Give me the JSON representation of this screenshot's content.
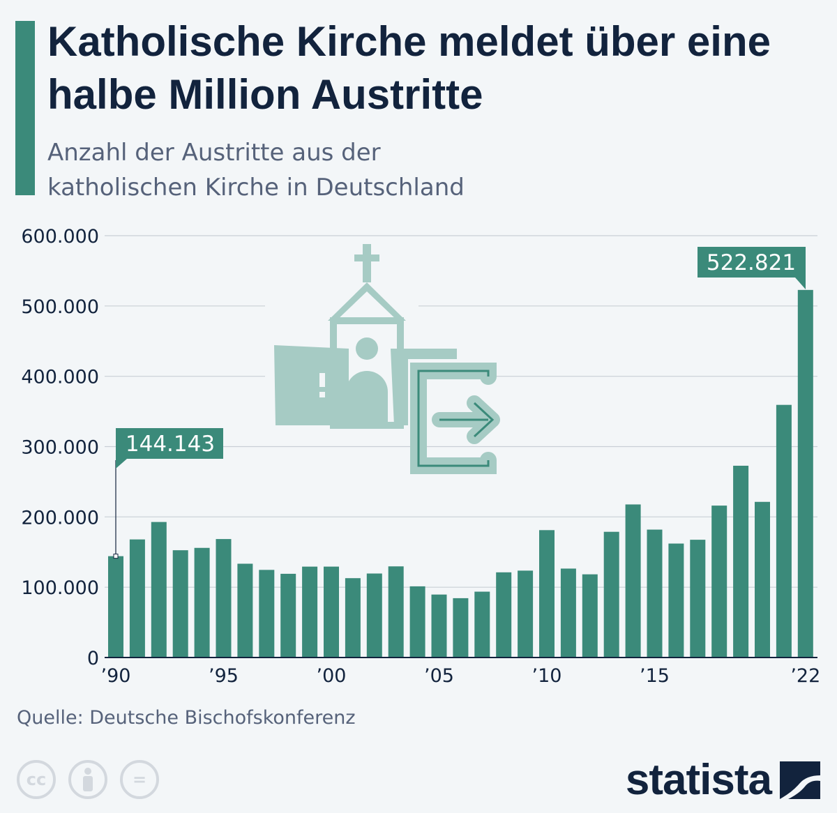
{
  "title": "Katholische Kirche meldet über eine halbe Million Austritte",
  "subtitle_line1": "Anzahl der Austritte aus der",
  "subtitle_line2": "katholischen Kirche in Deutschland",
  "source": "Quelle: Deutsche Bischofskonferenz",
  "brand": "statista",
  "icons": [
    "church-icon",
    "exit-icon",
    "cc-icon",
    "by-icon",
    "nd-icon"
  ],
  "colors": {
    "bar": "#3b8a7a",
    "title": "#12233d",
    "icon": "#a6cbc4"
  },
  "chart_data": {
    "type": "bar",
    "title": "",
    "xlabel": "",
    "ylabel": "",
    "ylim": [
      0,
      600000
    ],
    "grid": true,
    "yticks": [
      "0",
      "100.000",
      "200.000",
      "300.000",
      "400.000",
      "500.000",
      "600.000"
    ],
    "xticks": [
      {
        "year": 1990,
        "label": "’90"
      },
      {
        "year": 1995,
        "label": "’95"
      },
      {
        "year": 2000,
        "label": "’00"
      },
      {
        "year": 2005,
        "label": "’05"
      },
      {
        "year": 2010,
        "label": "’10"
      },
      {
        "year": 2015,
        "label": "’15"
      },
      {
        "year": 2022,
        "label": "’22"
      }
    ],
    "categories": [
      1990,
      1991,
      1992,
      1993,
      1994,
      1995,
      1996,
      1997,
      1998,
      1999,
      2000,
      2001,
      2002,
      2003,
      2004,
      2005,
      2006,
      2007,
      2008,
      2009,
      2010,
      2011,
      2012,
      2013,
      2014,
      2015,
      2016,
      2017,
      2018,
      2019,
      2020,
      2021,
      2022
    ],
    "values": [
      144143,
      167954,
      192766,
      152590,
      155943,
      168499,
      133402,
      124627,
      119076,
      129287,
      129300,
      112867,
      119474,
      129644,
      101252,
      89565,
      84389,
      93667,
      121155,
      123585,
      181193,
      126488,
      118335,
      178805,
      217716,
      181925,
      162093,
      167504,
      216078,
      272771,
      221390,
      359338,
      522821
    ],
    "annotations": [
      {
        "year": 1990,
        "label": "144.143"
      },
      {
        "year": 2022,
        "label": "522.821"
      }
    ]
  }
}
